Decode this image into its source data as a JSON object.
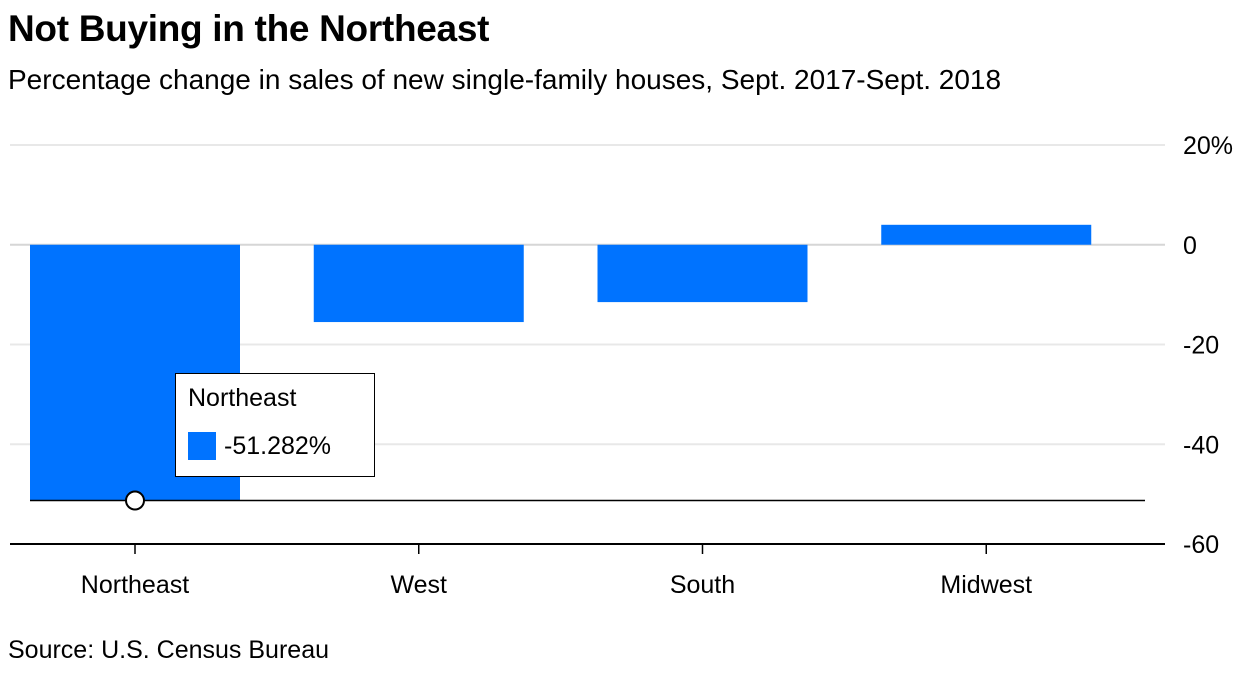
{
  "title": "Not Buying in the Northeast",
  "subtitle": "Percentage change in sales of new single-family houses, Sept. 2017-Sept. 2018",
  "source": "Source: U.S. Census Bureau",
  "colors": {
    "bar": "#0073ff",
    "grid": "#e8e8e8",
    "zero": "#d6d6d6",
    "axis": "#000000"
  },
  "chart_data": {
    "type": "bar",
    "title": "Not Buying in the Northeast",
    "subtitle": "Percentage change in sales of new single-family houses, Sept. 2017-Sept. 2018",
    "categories": [
      "Northeast",
      "West",
      "South",
      "Midwest"
    ],
    "values": [
      -51.282,
      -15.5,
      -11.5,
      4.0
    ],
    "ylim": [
      -60,
      20
    ],
    "yticks": [
      20,
      0,
      -20,
      -40,
      -60
    ],
    "ytick_labels": [
      "20%",
      "0",
      "-20",
      "-40",
      "-60"
    ],
    "y_axis_side": "right",
    "xlabel": "",
    "ylabel": "",
    "grid": true,
    "highlight": {
      "category": "Northeast",
      "value": -51.282,
      "label": "Northeast",
      "value_label": "-51.282%"
    }
  }
}
